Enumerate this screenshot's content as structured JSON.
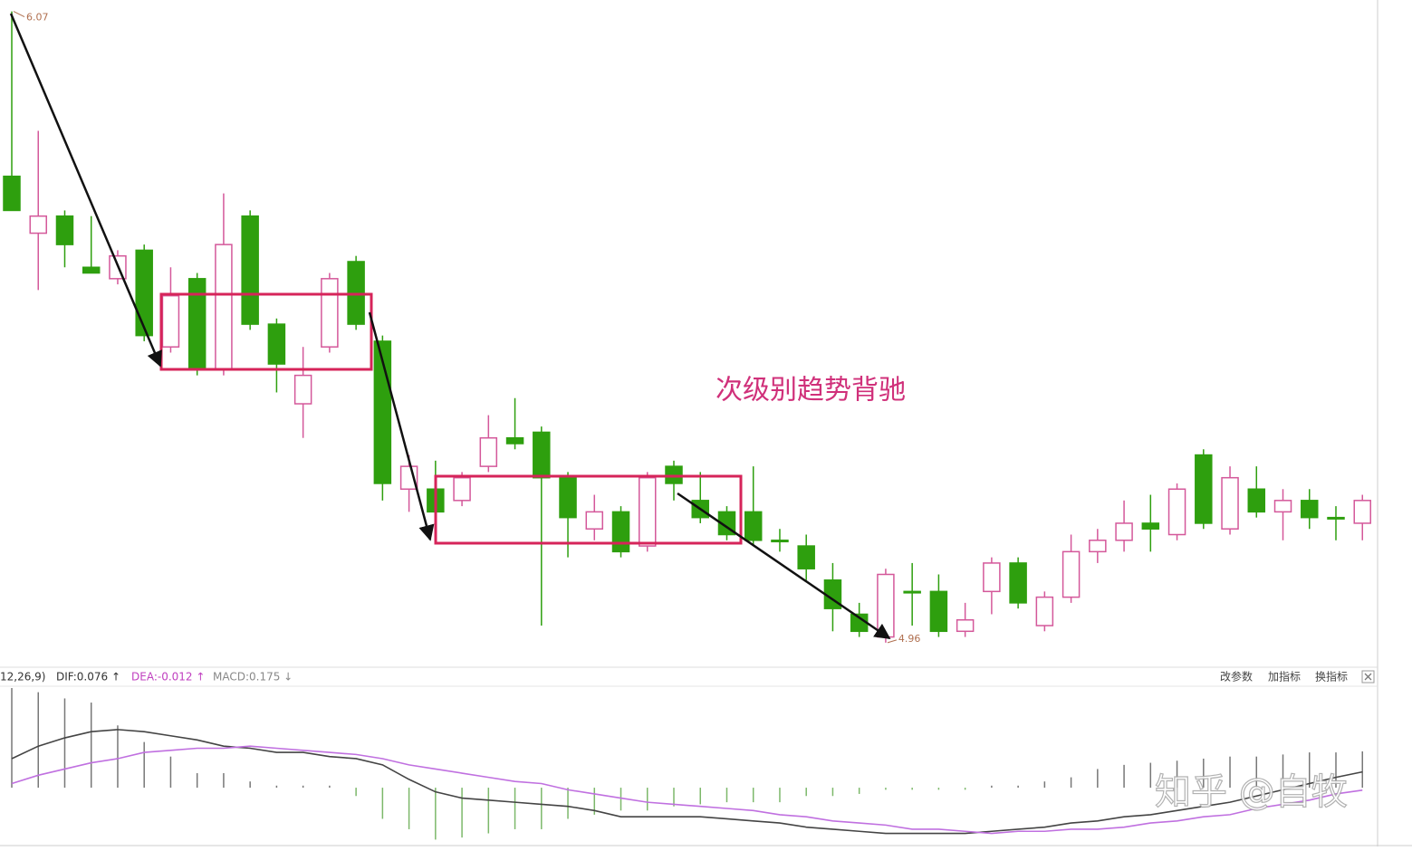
{
  "chart_data": [
    {
      "type": "candlestick",
      "up_color": "#d4589a",
      "down_color": "#2e9f0e",
      "ylim": [
        4.92,
        6.09
      ],
      "high_label": 6.07,
      "low_label": 4.96,
      "annotation": "次级别趋势背驰",
      "open": [
        5.78,
        5.68,
        5.71,
        5.62,
        5.6,
        5.65,
        5.48,
        5.6,
        5.44,
        5.71,
        5.52,
        5.38,
        5.48,
        5.63,
        5.49,
        5.23,
        5.23,
        5.21,
        5.27,
        5.32,
        5.33,
        5.25,
        5.16,
        5.19,
        5.13,
        5.27,
        5.21,
        5.19,
        5.19,
        5.14,
        5.13,
        5.07,
        5.01,
        4.97,
        5.05,
        5.05,
        4.98,
        5.05,
        5.1,
        4.99,
        5.04,
        5.12,
        5.14,
        5.17,
        5.15,
        5.29,
        5.16,
        5.23,
        5.19,
        5.21,
        5.18,
        5.17
      ],
      "high": [
        6.07,
        5.86,
        5.72,
        5.71,
        5.65,
        5.66,
        5.62,
        5.61,
        5.75,
        5.72,
        5.53,
        5.48,
        5.61,
        5.64,
        5.5,
        5.29,
        5.28,
        5.26,
        5.36,
        5.39,
        5.34,
        5.26,
        5.22,
        5.2,
        5.26,
        5.28,
        5.26,
        5.2,
        5.27,
        5.16,
        5.15,
        5.1,
        5.03,
        5.09,
        5.1,
        5.08,
        5.03,
        5.11,
        5.11,
        5.05,
        5.15,
        5.16,
        5.21,
        5.22,
        5.24,
        5.3,
        5.27,
        5.27,
        5.23,
        5.23,
        5.2,
        5.22
      ],
      "low": [
        5.72,
        5.58,
        5.62,
        5.61,
        5.59,
        5.49,
        5.47,
        5.43,
        5.43,
        5.51,
        5.4,
        5.32,
        5.47,
        5.51,
        5.21,
        5.19,
        5.15,
        5.2,
        5.26,
        5.3,
        4.99,
        5.11,
        5.14,
        5.11,
        5.12,
        5.21,
        5.17,
        5.14,
        5.13,
        5.12,
        5.07,
        4.98,
        4.97,
        4.96,
        4.99,
        4.97,
        4.97,
        5.01,
        5.02,
        4.98,
        5.03,
        5.1,
        5.12,
        5.12,
        5.14,
        5.16,
        5.15,
        5.18,
        5.14,
        5.16,
        5.14,
        5.14
      ],
      "close": [
        5.72,
        5.71,
        5.66,
        5.61,
        5.64,
        5.5,
        5.57,
        5.44,
        5.66,
        5.52,
        5.45,
        5.43,
        5.6,
        5.52,
        5.24,
        5.27,
        5.19,
        5.25,
        5.32,
        5.31,
        5.25,
        5.18,
        5.19,
        5.12,
        5.25,
        5.24,
        5.18,
        5.15,
        5.14,
        5.14,
        5.09,
        5.02,
        4.98,
        5.08,
        5.05,
        4.98,
        5.0,
        5.1,
        5.03,
        5.04,
        5.12,
        5.14,
        5.17,
        5.16,
        5.23,
        5.17,
        5.25,
        5.19,
        5.21,
        5.18,
        5.18,
        5.21
      ]
    },
    {
      "type": "macd",
      "ylim": [
        -0.27,
        0.48
      ],
      "legend": [
        "12,26,9)",
        "DIF:0.076 ↑",
        "DEA:-0.012 ↑",
        "MACD:0.175 ↓"
      ],
      "legend_colors": [
        "#333333",
        "#333333",
        "#c040c0",
        "#888888"
      ],
      "series": [
        {
          "style": "line",
          "color": "#444444",
          "values": [
            0.14,
            0.2,
            0.24,
            0.27,
            0.28,
            0.27,
            0.25,
            0.23,
            0.2,
            0.19,
            0.17,
            0.17,
            0.15,
            0.14,
            0.11,
            0.04,
            -0.02,
            -0.05,
            -0.06,
            -0.07,
            -0.08,
            -0.09,
            -0.11,
            -0.14,
            -0.14,
            -0.14,
            -0.14,
            -0.15,
            -0.16,
            -0.17,
            -0.19,
            -0.2,
            -0.21,
            -0.22,
            -0.22,
            -0.22,
            -0.22,
            -0.21,
            -0.2,
            -0.19,
            -0.17,
            -0.16,
            -0.14,
            -0.13,
            -0.11,
            -0.09,
            -0.07,
            -0.04,
            -0.01,
            0.02,
            0.05,
            0.076
          ]
        },
        {
          "style": "line",
          "color": "#c070e0",
          "values": [
            0.02,
            0.06,
            0.09,
            0.12,
            0.14,
            0.17,
            0.18,
            0.19,
            0.19,
            0.2,
            0.19,
            0.18,
            0.17,
            0.16,
            0.14,
            0.11,
            0.09,
            0.07,
            0.05,
            0.03,
            0.02,
            -0.01,
            -0.03,
            -0.05,
            -0.07,
            -0.08,
            -0.09,
            -0.1,
            -0.11,
            -0.13,
            -0.14,
            -0.16,
            -0.17,
            -0.18,
            -0.2,
            -0.2,
            -0.21,
            -0.22,
            -0.21,
            -0.21,
            -0.2,
            -0.2,
            -0.19,
            -0.17,
            -0.16,
            -0.14,
            -0.13,
            -0.1,
            -0.08,
            -0.06,
            -0.03,
            -0.012
          ]
        },
        {
          "style": "bar",
          "up_color": "#777777",
          "down_color": "#7cb86a",
          "values": [
            0.48,
            0.46,
            0.43,
            0.41,
            0.3,
            0.22,
            0.15,
            0.07,
            0.07,
            0.03,
            0.01,
            0.01,
            0.01,
            -0.04,
            -0.15,
            -0.2,
            -0.25,
            -0.24,
            -0.22,
            -0.2,
            -0.2,
            -0.15,
            -0.13,
            -0.11,
            -0.11,
            -0.09,
            -0.08,
            -0.07,
            -0.07,
            -0.07,
            -0.04,
            -0.04,
            -0.03,
            -0.01,
            -0.01,
            -0.01,
            -0.01,
            0.01,
            0.01,
            0.03,
            0.05,
            0.09,
            0.11,
            0.12,
            0.13,
            0.14,
            0.15,
            0.15,
            0.16,
            0.17,
            0.17,
            0.175
          ]
        }
      ]
    }
  ],
  "toolbar": [
    "改参数",
    "加指标",
    "换指标"
  ],
  "watermark": "知乎 @自牧"
}
